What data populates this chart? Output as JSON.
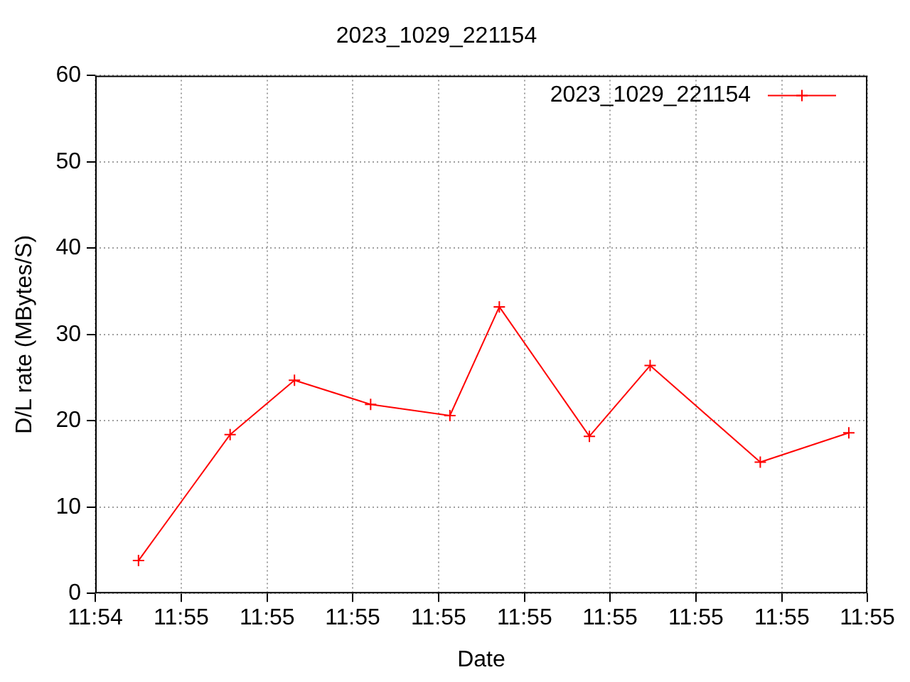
{
  "chart_data": {
    "type": "line",
    "title": "2023_1029_221154",
    "xlabel": "Date",
    "ylabel": "D/L rate (MBytes/S)",
    "x": [
      11.90778,
      11.90956,
      11.91081,
      11.91229,
      11.91383,
      11.91479,
      11.91654,
      11.91772,
      11.91986,
      11.92158
    ],
    "series": [
      {
        "name": "2023_1029_221154",
        "color": "#ff0000",
        "values": [
          3.8,
          18.4,
          24.7,
          21.9,
          20.6,
          33.2,
          18.2,
          26.4,
          15.2,
          18.6
        ]
      }
    ],
    "xlim": [
      11.90694,
      11.92194
    ],
    "xticks": [
      {
        "value": 11.90694,
        "label": "11:54"
      },
      {
        "value": 11.90861,
        "label": "11:55"
      },
      {
        "value": 11.91028,
        "label": "11:55"
      },
      {
        "value": 11.91194,
        "label": "11:55"
      },
      {
        "value": 11.91361,
        "label": "11:55"
      },
      {
        "value": 11.91528,
        "label": "11:55"
      },
      {
        "value": 11.91694,
        "label": "11:55"
      },
      {
        "value": 11.91861,
        "label": "11:55"
      },
      {
        "value": 11.92028,
        "label": "11:55"
      },
      {
        "value": 11.92194,
        "label": "11:55"
      }
    ],
    "ylim": [
      0,
      60
    ],
    "yticks": [
      0,
      10,
      20,
      30,
      40,
      50,
      60
    ],
    "grid": true,
    "legend": "top right",
    "marker": "cross",
    "line_style": "solid"
  }
}
